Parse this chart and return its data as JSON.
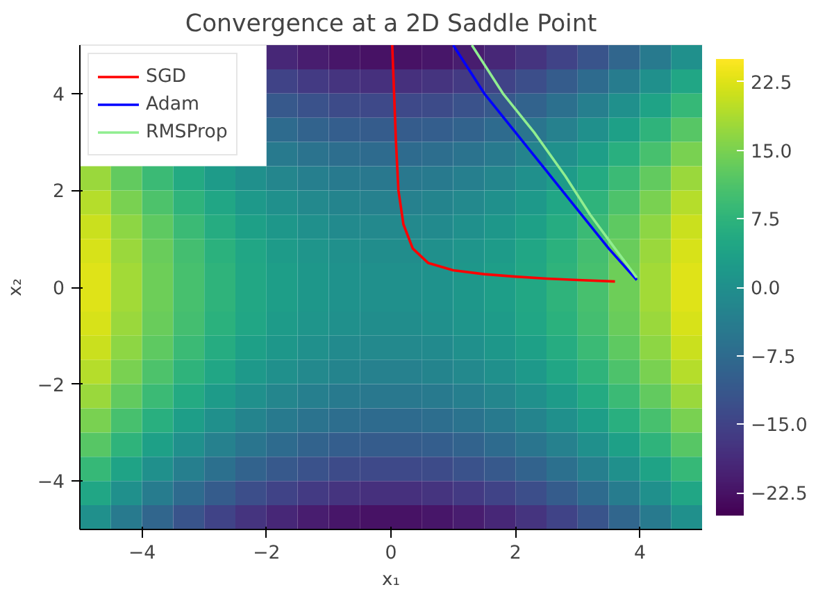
{
  "chart_data": {
    "type": "heatmap",
    "title": "Convergence at a 2D Saddle Point",
    "xlabel": "x₁",
    "ylabel": "x₂",
    "x": [
      -4.75,
      -4.25,
      -3.75,
      -3.25,
      -2.75,
      -2.25,
      -1.75,
      -1.25,
      -0.75,
      -0.25,
      0.25,
      0.75,
      1.25,
      1.75,
      2.25,
      2.75,
      3.25,
      3.75,
      4.25,
      4.75
    ],
    "y": [
      4.75,
      4.25,
      3.75,
      3.25,
      2.75,
      2.25,
      1.75,
      1.25,
      0.75,
      0.25,
      -0.25,
      -0.75,
      -1.25,
      -1.75,
      -2.25,
      -2.75,
      -3.25,
      -3.75,
      -4.25,
      -4.75
    ],
    "cells": [
      [
        null,
        null,
        null,
        null,
        null,
        null,
        -19.5,
        -21,
        -22,
        -22.5,
        -22.5,
        -22,
        -21,
        -19.5,
        -17.5,
        -15,
        -12,
        -8.5,
        -4.5,
        0
      ],
      [
        null,
        null,
        null,
        null,
        null,
        null,
        -15,
        -16.5,
        -17.5,
        -18,
        -18,
        -17.5,
        -16.5,
        -15,
        -13,
        -10.5,
        -7.5,
        -4,
        0,
        4.5
      ],
      [
        null,
        null,
        null,
        null,
        null,
        null,
        -11,
        -12.5,
        -13.5,
        -14,
        -14,
        -13.5,
        -12.5,
        -11,
        -9,
        -6.5,
        -3.5,
        0,
        4,
        8.5
      ],
      [
        null,
        null,
        null,
        null,
        null,
        null,
        -7.5,
        -9,
        -10,
        -10.5,
        -10.5,
        -10,
        -9,
        -7.5,
        -5.5,
        -3,
        0,
        3.5,
        7.5,
        12
      ],
      [
        null,
        null,
        null,
        null,
        null,
        null,
        -4.5,
        -6,
        -7,
        -7.5,
        -7.5,
        -7,
        -6,
        -4.5,
        -2.5,
        0,
        3,
        6.5,
        10.5,
        15
      ],
      [
        17.5,
        13,
        9,
        5.5,
        2.5,
        0,
        -2,
        -3.5,
        -4.5,
        -5,
        -5,
        -4.5,
        -3.5,
        -2,
        0,
        2.5,
        5.5,
        9,
        13,
        17.5
      ],
      [
        19.5,
        15,
        11,
        7.5,
        4.5,
        2,
        0,
        -1.5,
        -2.5,
        -3,
        -3,
        -2.5,
        -1.5,
        0,
        2,
        4.5,
        7.5,
        11,
        15,
        19.5
      ],
      [
        21,
        16.5,
        12.5,
        9,
        6,
        3.5,
        1.5,
        0,
        -1,
        -1.5,
        -1.5,
        -1,
        0,
        1.5,
        3.5,
        6,
        9,
        12.5,
        16.5,
        21
      ],
      [
        22,
        17.5,
        13.5,
        10,
        7,
        4.5,
        2.5,
        1,
        0,
        -0.5,
        -0.5,
        0,
        1,
        2.5,
        4.5,
        7,
        10,
        13.5,
        17.5,
        22
      ],
      [
        22.5,
        18,
        14,
        10.5,
        7.5,
        5,
        3,
        1.5,
        0.5,
        0,
        0,
        0.5,
        1.5,
        3,
        5,
        7.5,
        10.5,
        14,
        18,
        22.5
      ],
      [
        22.5,
        18,
        14,
        10.5,
        7.5,
        5,
        3,
        1.5,
        0.5,
        0,
        0,
        0.5,
        1.5,
        3,
        5,
        7.5,
        10.5,
        14,
        18,
        22.5
      ],
      [
        22,
        17.5,
        13.5,
        10,
        7,
        4.5,
        2.5,
        1,
        0,
        -0.5,
        -0.5,
        0,
        1,
        2.5,
        4.5,
        7,
        10,
        13.5,
        17.5,
        22
      ],
      [
        21,
        16.5,
        12.5,
        9,
        6,
        3.5,
        1.5,
        0,
        -1,
        -1.5,
        -1.5,
        -1,
        0,
        1.5,
        3.5,
        6,
        9,
        12.5,
        16.5,
        21
      ],
      [
        19.5,
        15,
        11,
        7.5,
        4.5,
        2,
        0,
        -1.5,
        -2.5,
        -3,
        -3,
        -2.5,
        -1.5,
        0,
        2,
        4.5,
        7.5,
        11,
        15,
        19.5
      ],
      [
        17.5,
        13,
        9,
        5.5,
        2.5,
        0,
        -2,
        -3.5,
        -4.5,
        -5,
        -5,
        -4.5,
        -3.5,
        -2,
        0,
        2.5,
        5.5,
        9,
        13,
        17.5
      ],
      [
        15,
        10.5,
        6.5,
        3,
        0,
        -2.5,
        -4.5,
        -6,
        -7,
        -7.5,
        -7.5,
        -7,
        -6,
        -4.5,
        -2.5,
        0,
        3,
        6.5,
        10.5,
        15
      ],
      [
        12,
        7.5,
        3.5,
        0,
        -3,
        -5.5,
        -7.5,
        -9,
        -10,
        -10.5,
        -10.5,
        -10,
        -9,
        -7.5,
        -5.5,
        -3,
        0,
        3.5,
        7.5,
        12
      ],
      [
        8.5,
        4,
        0,
        -3.5,
        -6.5,
        -9,
        -11,
        -12.5,
        -13.5,
        -14,
        -14,
        -13.5,
        -12.5,
        -11,
        -9,
        -6.5,
        -3.5,
        0,
        4,
        8.5
      ],
      [
        4.5,
        0,
        -4,
        -7.5,
        -10.5,
        -13,
        -15,
        -16.5,
        -17.5,
        -18,
        -18,
        -17.5,
        -16.5,
        -15,
        -13,
        -10.5,
        -7.5,
        -4,
        0,
        4.5
      ],
      [
        0,
        -4.5,
        -8.5,
        -12,
        -15,
        -17.5,
        -19.5,
        -21,
        -22,
        -22.5,
        -22.5,
        -22,
        -21,
        -19.5,
        -17.5,
        -15,
        -12,
        -8.5,
        -4.5,
        0
      ]
    ],
    "clim": [
      -25,
      25
    ],
    "cticks": [
      {
        "value": -22.5,
        "label": "−22.5"
      },
      {
        "value": -15,
        "label": "−15.0"
      },
      {
        "value": -7.5,
        "label": "−7.5"
      },
      {
        "value": 0,
        "label": "0.0"
      },
      {
        "value": 7.5,
        "label": "7.5"
      },
      {
        "value": 15,
        "label": "15.0"
      },
      {
        "value": 22.5,
        "label": "22.5"
      }
    ],
    "xlim": [
      -5,
      5
    ],
    "ylim": [
      -5,
      5
    ],
    "xticks": [
      {
        "value": -4,
        "label": "−4"
      },
      {
        "value": -2,
        "label": "−2"
      },
      0,
      2,
      4
    ],
    "yticks": [
      {
        "value": -4,
        "label": "−4"
      },
      {
        "value": -2,
        "label": "−2"
      },
      0,
      2,
      4
    ],
    "series": [
      {
        "name": "SGD",
        "type": "line",
        "color": "#ff0000",
        "x": [
          0.02,
          0.05,
          0.08,
          0.12,
          0.2,
          0.35,
          0.6,
          1,
          1.5,
          2,
          2.5,
          3,
          3.6
        ],
        "values": [
          5,
          4,
          3,
          2,
          1.3,
          0.8,
          0.5,
          0.35,
          0.27,
          0.22,
          0.18,
          0.15,
          0.12
        ]
      },
      {
        "name": "Adam",
        "type": "line",
        "color": "#0000ff",
        "x": [
          1,
          1.5,
          2,
          2.5,
          3,
          3.5,
          3.95
        ],
        "values": [
          5,
          4,
          3.2,
          2.4,
          1.6,
          0.8,
          0.15
        ]
      },
      {
        "name": "RMSProp",
        "type": "line",
        "color": "#90ee90",
        "x": [
          1.3,
          1.8,
          2.3,
          2.8,
          3.2,
          3.6,
          3.95
        ],
        "values": [
          5,
          4,
          3.2,
          2.3,
          1.5,
          0.8,
          0.2
        ]
      }
    ],
    "legend": "top left",
    "grid": false
  }
}
